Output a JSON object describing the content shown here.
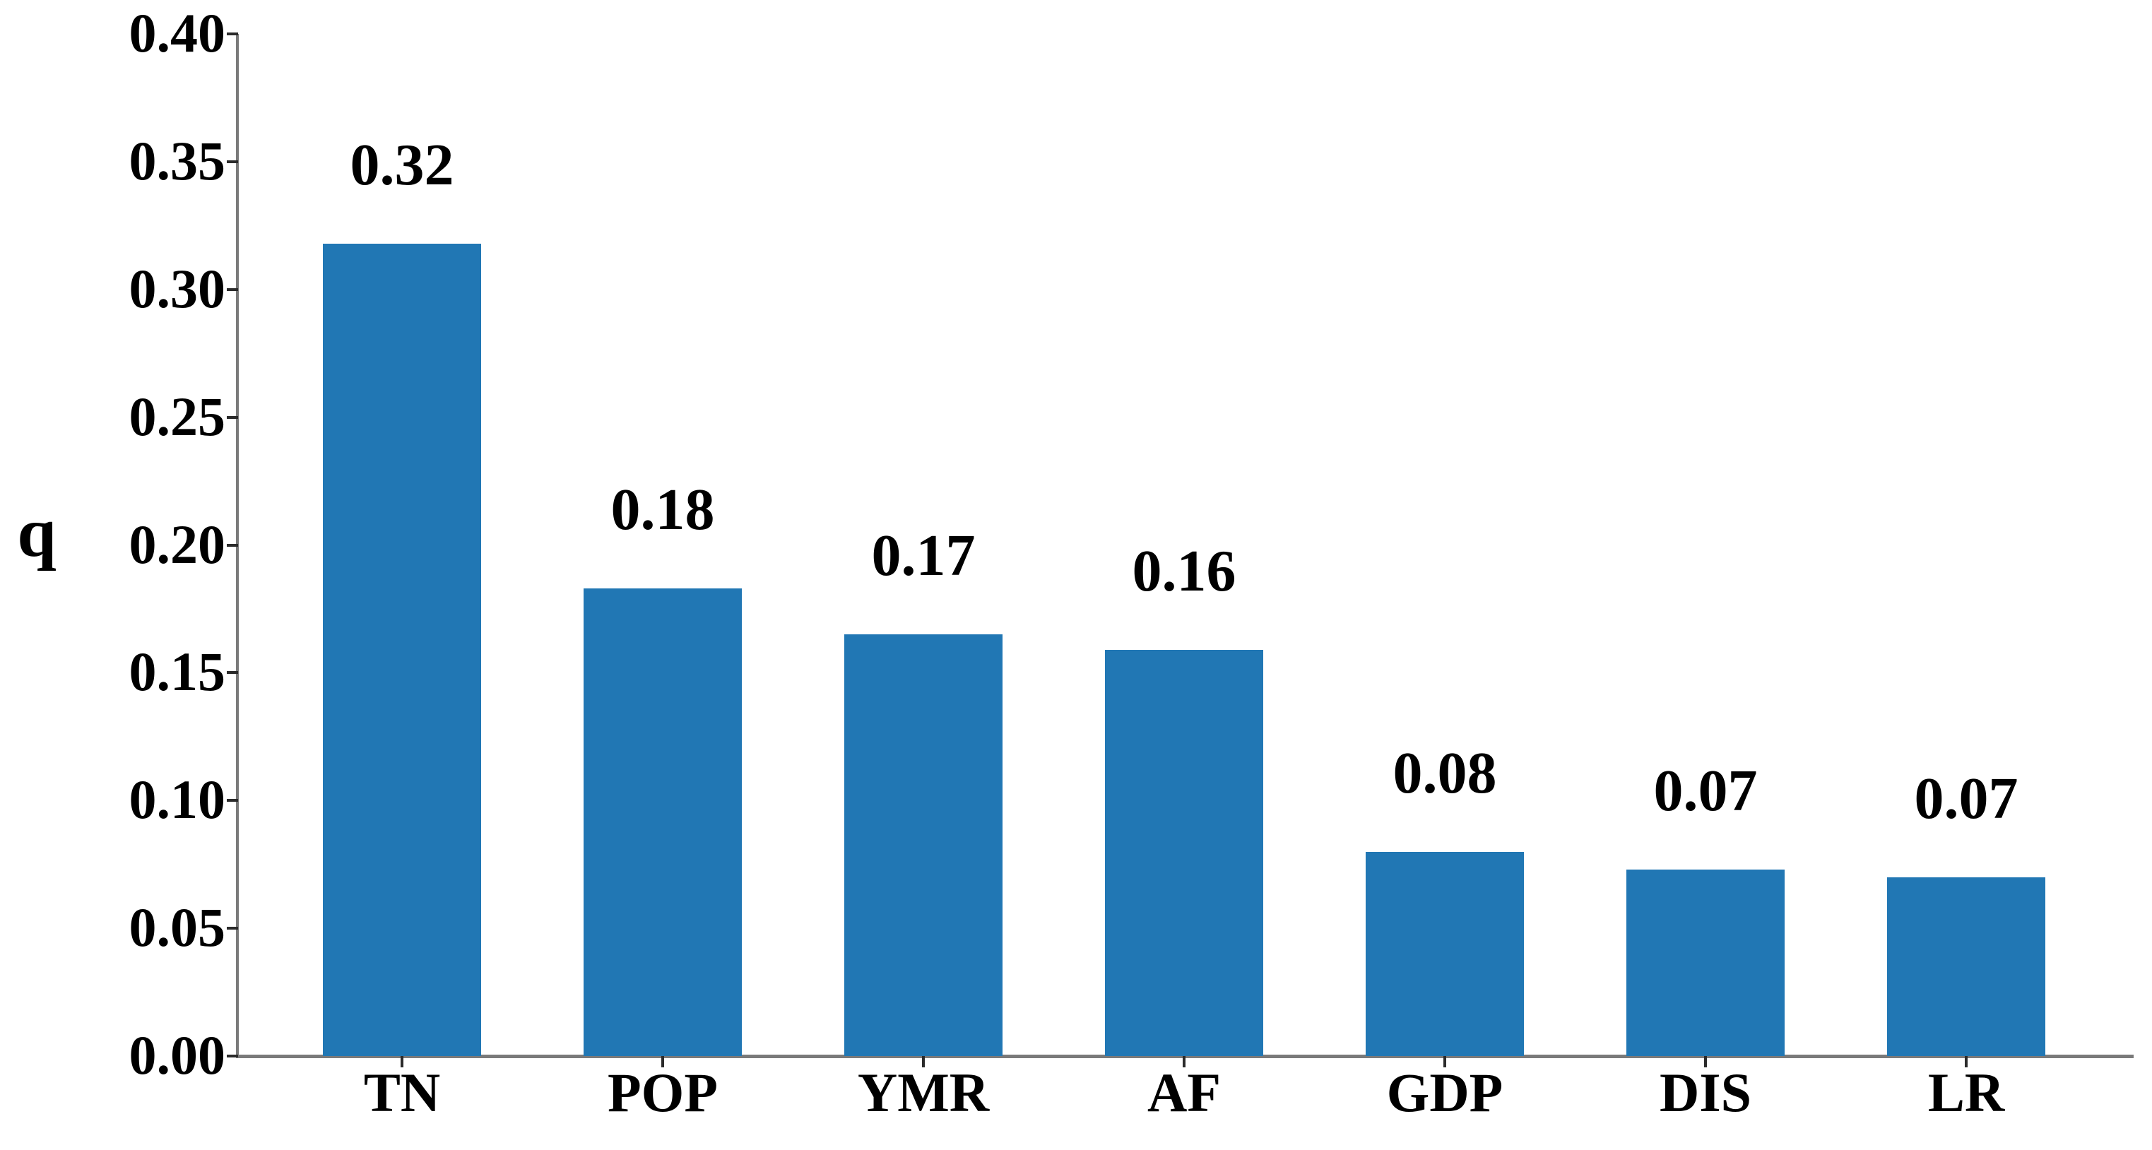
{
  "chart_data": {
    "type": "bar",
    "title": "",
    "xlabel": "",
    "ylabel": "q",
    "categories": [
      "TN",
      "POP",
      "YMR",
      "AF",
      "GDP",
      "DIS",
      "LR"
    ],
    "values": [
      0.32,
      0.18,
      0.17,
      0.16,
      0.08,
      0.07,
      0.07
    ],
    "value_labels": [
      "0.32",
      "0.18",
      "0.17",
      "0.16",
      "0.08",
      "0.07",
      "0.07"
    ],
    "values_precise": [
      0.318,
      0.183,
      0.165,
      0.159,
      0.08,
      0.073,
      0.07
    ],
    "ylim": [
      0.0,
      0.4
    ],
    "ytick_step": 0.05,
    "ytick_labels": [
      "0.00",
      "0.05",
      "0.10",
      "0.15",
      "0.20",
      "0.25",
      "0.30",
      "0.35",
      "0.40"
    ],
    "grid": false,
    "legend": "none",
    "bar_color": "#2177b4",
    "axis_color": "#7a7a7a",
    "tick_color": "#2b2b2b",
    "text_color": "#000000"
  }
}
